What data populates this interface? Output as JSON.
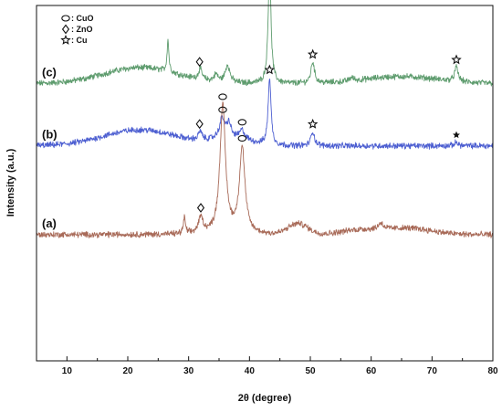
{
  "chart_data": {
    "type": "line",
    "title": "",
    "xlabel": "2θ (degree)",
    "ylabel": "Intensity (a.u.)",
    "xlim": [
      5,
      80
    ],
    "x_ticks": [
      10,
      20,
      30,
      40,
      50,
      60,
      70,
      80
    ],
    "y_ticks_shown": false,
    "grid": false,
    "legend": {
      "position": "top-left",
      "entries": [
        {
          "symbol": "ellipse",
          "label": ": CuO"
        },
        {
          "symbol": "diamond",
          "label": ": ZnO"
        },
        {
          "symbol": "star",
          "label": ": Cu"
        }
      ]
    },
    "series": [
      {
        "name": "(c)",
        "color": "#5e9c6e",
        "base": 0.78,
        "broad_humps": [
          {
            "center": 22,
            "height": 0.045,
            "width": 6
          },
          {
            "center": 65,
            "height": 0.02,
            "width": 6
          }
        ],
        "peaks": [
          {
            "x": 26.6,
            "height": 0.09,
            "width": 0.18
          },
          {
            "x": 31.9,
            "height": 0.03,
            "width": 0.35
          },
          {
            "x": 34.5,
            "height": 0.02,
            "width": 0.4
          },
          {
            "x": 36.4,
            "height": 0.05,
            "width": 0.45
          },
          {
            "x": 43.3,
            "height": 0.325,
            "width": 0.28
          },
          {
            "x": 50.4,
            "height": 0.06,
            "width": 0.35
          },
          {
            "x": 56.8,
            "height": 0.01,
            "width": 0.4
          },
          {
            "x": 74.0,
            "height": 0.04,
            "width": 0.35
          }
        ],
        "markers": [
          {
            "x": 31.8,
            "symbol": "diamond"
          },
          {
            "x": 43.3,
            "symbol": "star"
          },
          {
            "x": 50.4,
            "symbol": "star"
          },
          {
            "x": 74.0,
            "symbol": "star"
          }
        ],
        "label": "(c)"
      },
      {
        "name": "(b)",
        "color": "#4d5fd1",
        "base": 0.605,
        "broad_humps": [
          {
            "center": 22,
            "height": 0.045,
            "width": 6
          },
          {
            "center": 37,
            "height": 0.02,
            "width": 3
          }
        ],
        "peaks": [
          {
            "x": 31.9,
            "height": 0.025,
            "width": 0.35
          },
          {
            "x": 35.5,
            "height": 0.055,
            "width": 0.5
          },
          {
            "x": 36.6,
            "height": 0.04,
            "width": 0.4
          },
          {
            "x": 38.8,
            "height": 0.025,
            "width": 0.5
          },
          {
            "x": 43.3,
            "height": 0.19,
            "width": 0.28
          },
          {
            "x": 50.4,
            "height": 0.04,
            "width": 0.35
          },
          {
            "x": 74.0,
            "height": 0.01,
            "width": 0.35
          }
        ],
        "markers": [
          {
            "x": 31.8,
            "symbol": "diamond"
          },
          {
            "x": 35.6,
            "symbol": "ellipse"
          },
          {
            "x": 38.8,
            "symbol": "ellipse"
          },
          {
            "x": 43.3,
            "symbol": "star"
          },
          {
            "x": 50.4,
            "symbol": "star"
          },
          {
            "x": 74.0,
            "symbol": "asterisk"
          }
        ],
        "label": "(b)"
      },
      {
        "name": "(a)",
        "color": "#a86a58",
        "base": 0.355,
        "broad_humps": [
          {
            "center": 48,
            "height": 0.03,
            "width": 1.6
          },
          {
            "center": 58,
            "height": 0.012,
            "width": 3
          },
          {
            "center": 66,
            "height": 0.018,
            "width": 4
          }
        ],
        "peaks": [
          {
            "x": 29.3,
            "height": 0.045,
            "width": 0.2
          },
          {
            "x": 32.0,
            "height": 0.045,
            "width": 0.45
          },
          {
            "x": 35.6,
            "height": 0.36,
            "width": 0.55
          },
          {
            "x": 38.8,
            "height": 0.24,
            "width": 0.55
          },
          {
            "x": 61.6,
            "height": 0.018,
            "width": 0.5
          }
        ],
        "markers": [
          {
            "x": 32.0,
            "symbol": "diamond"
          },
          {
            "x": 35.6,
            "symbol": "ellipse"
          },
          {
            "x": 38.8,
            "symbol": "ellipse"
          }
        ],
        "label": "(a)"
      }
    ]
  }
}
